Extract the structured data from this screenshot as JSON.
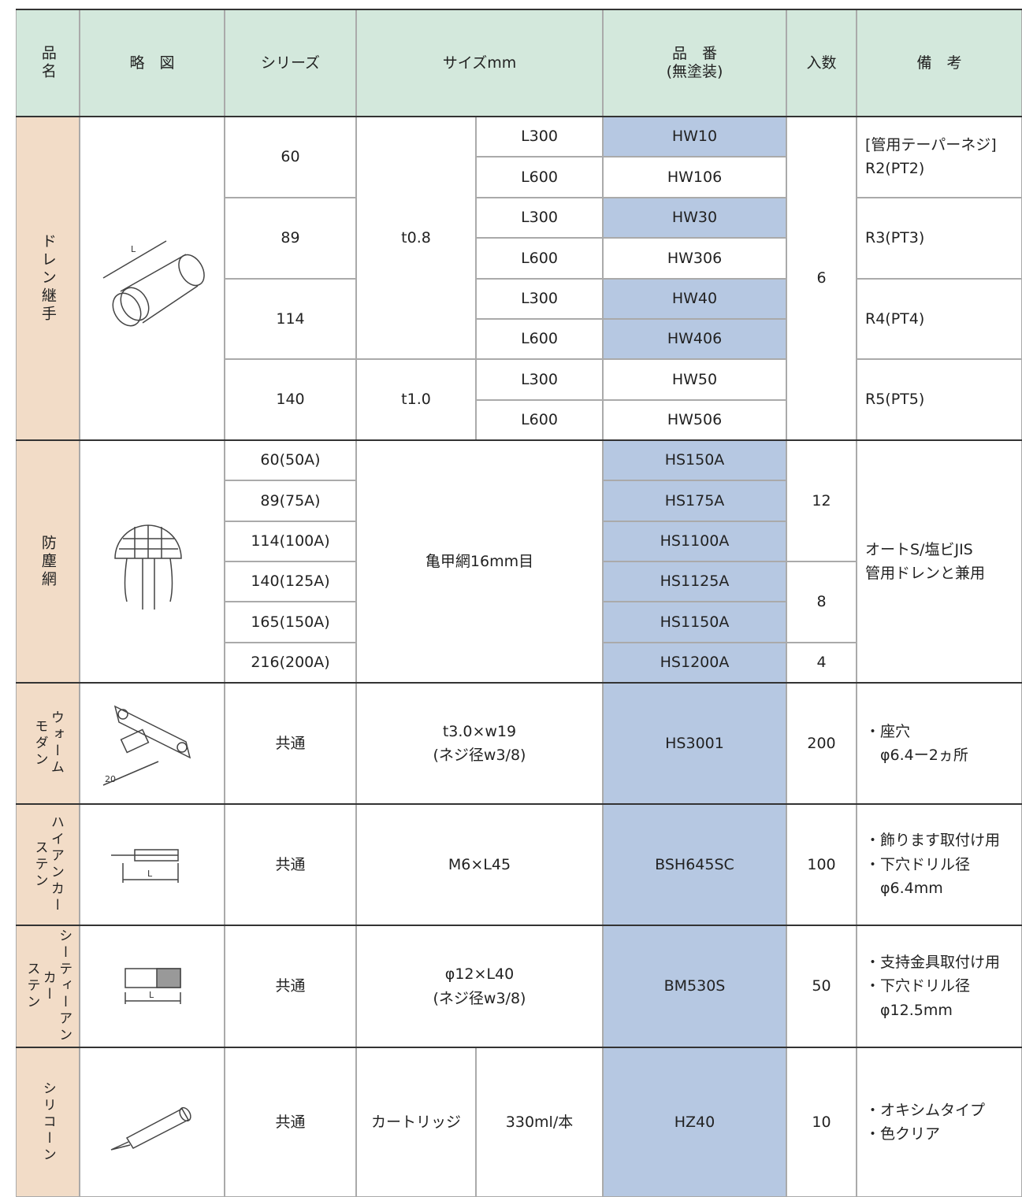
{
  "header": {
    "name": "品名",
    "sketch": "略　図",
    "series": "シリーズ",
    "size": "サイズmm",
    "part_no": "品　番\n(無塗装)",
    "quantity": "入数",
    "remarks": "備　考"
  },
  "drain": {
    "name": "ドレン継手",
    "sketch_label": "L",
    "series": [
      "60",
      "89",
      "114",
      "140"
    ],
    "thickness": [
      "t0.8",
      "t1.0"
    ],
    "lengths": [
      "L300",
      "L600",
      "L300",
      "L600",
      "L300",
      "L600",
      "L300",
      "L600"
    ],
    "part_nos": [
      "HW10",
      "HW106",
      "HW30",
      "HW306",
      "HW40",
      "HW406",
      "HW50",
      "HW506"
    ],
    "quantity": "6",
    "remarks": [
      "[管用テーパーネジ]\nR2(PT2)",
      "R3(PT3)",
      "R4(PT4)",
      "R5(PT5)"
    ]
  },
  "dust_net": {
    "name": "防塵網",
    "series": [
      "60(50A)",
      "89(75A)",
      "114(100A)",
      "140(125A)",
      "165(150A)",
      "216(200A)"
    ],
    "size": "亀甲網16mm目",
    "part_nos": [
      "HS150A",
      "HS175A",
      "HS1100A",
      "HS1125A",
      "HS1150A",
      "HS1200A"
    ],
    "quantities": [
      "12",
      "8",
      "4"
    ],
    "remarks": "オートS/塩ビJIS\n管用ドレンと兼用"
  },
  "items": [
    {
      "name": "ウォーム\nモダン",
      "sketch_label": "20",
      "series": "共通",
      "size": "t3.0×w19\n(ネジ径w3/8)",
      "part_no": "HS3001",
      "quantity": "200",
      "remarks": "・座穴\n　φ6.4ー2ヵ所"
    },
    {
      "name": "ハイアンカー\nステン",
      "sketch_label": "L",
      "series": "共通",
      "size": "M6×L45",
      "part_no": "BSH645SC",
      "quantity": "100",
      "remarks": "・飾ります取付け用\n・下穴ドリル径\n　φ6.4mm"
    },
    {
      "name": "シーティーアンカー\nステン",
      "sketch_label": "L",
      "series": "共通",
      "size": "φ12×L40\n(ネジ径w3/8)",
      "part_no": "BM530S",
      "quantity": "50",
      "remarks": "・支持金具取付け用\n・下穴ドリル径\n　φ12.5mm"
    },
    {
      "name": "シリコーン",
      "series": "共通",
      "size": "カートリッジ",
      "volume": "330ml/本",
      "part_no": "HZ40",
      "quantity": "10",
      "remarks": "・オキシムタイプ\n・色クリア"
    }
  ]
}
